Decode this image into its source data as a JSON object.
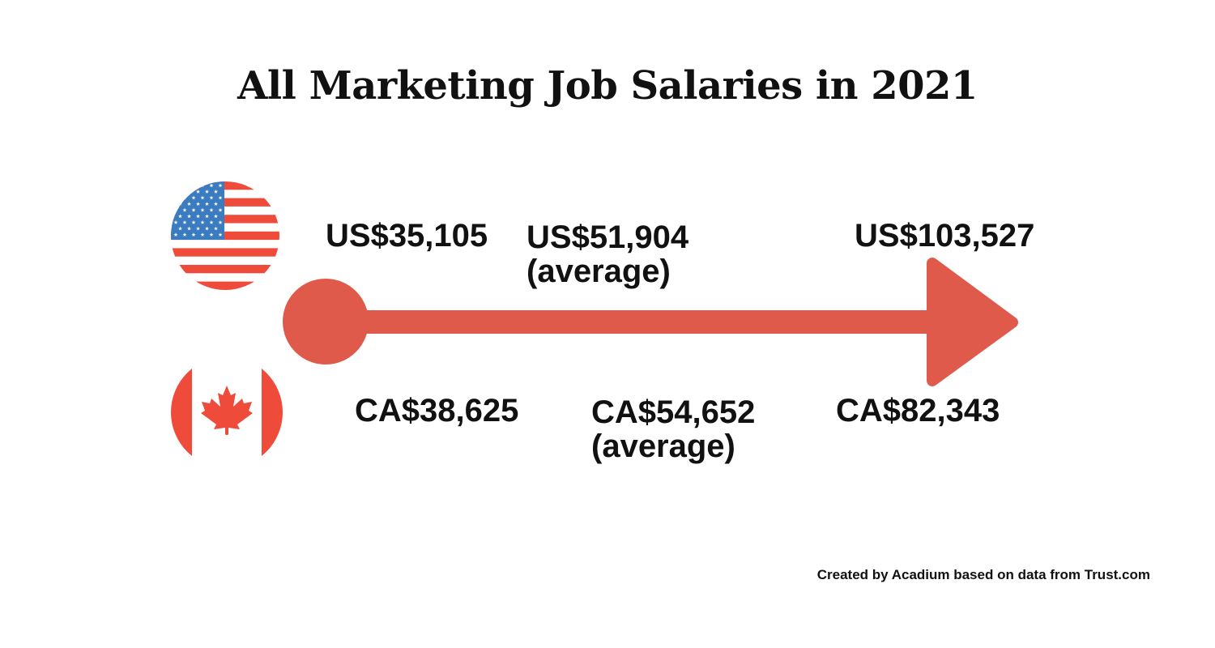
{
  "title": "All Marketing Job Salaries in 2021",
  "colors": {
    "accent": "#E05A4B",
    "flag_blue": "#3B7CC1",
    "flag_red": "#EE4B3B",
    "text": "#111111"
  },
  "countries": [
    {
      "flag_icon": "us-flag-icon",
      "min": "US$35,105",
      "average": "US$51,904",
      "average_note": "(average)",
      "max": "US$103,527"
    },
    {
      "flag_icon": "canada-flag-icon",
      "min": "CA$38,625",
      "average": "CA$54,652",
      "average_note": "(average)",
      "max": "CA$82,343"
    }
  ],
  "credit": "Created by Acadium based on data from Trust.com"
}
